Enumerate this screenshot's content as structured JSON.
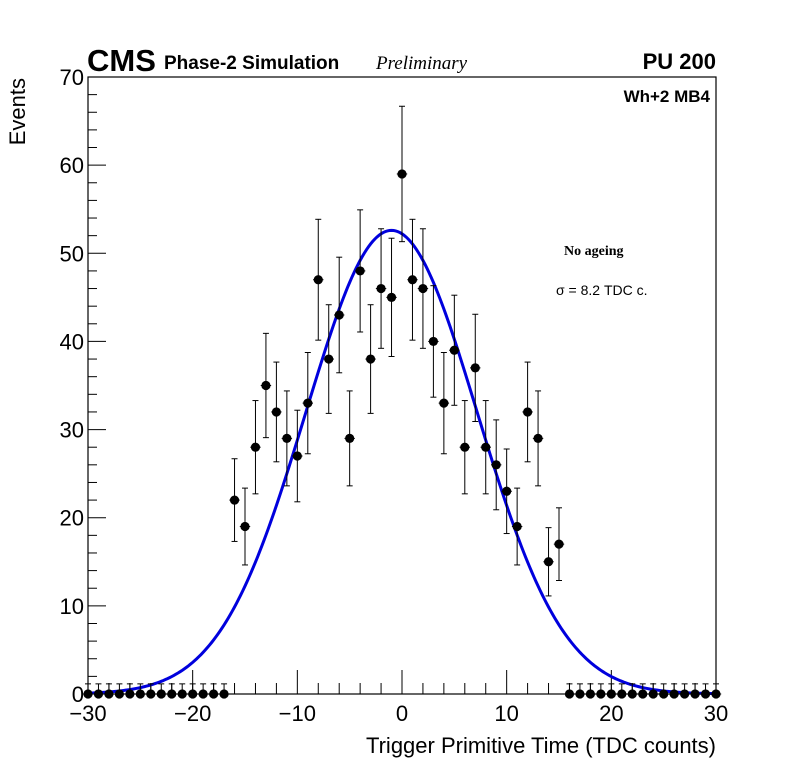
{
  "header": {
    "experiment": "CMS",
    "label": "Phase-2 Simulation",
    "status": "Preliminary",
    "pileup": "PU 200"
  },
  "chart_data": {
    "type": "scatter",
    "title": "",
    "xlabel": "Trigger Primitive Time (TDC counts)",
    "ylabel": "Events",
    "xlim": [
      -30,
      30
    ],
    "ylim": [
      0,
      70
    ],
    "x_ticks": [
      -30,
      -20,
      -10,
      0,
      10,
      20,
      30
    ],
    "x_tick_labels": [
      "−30",
      "−20",
      "−10",
      "0",
      "10",
      "20",
      "30"
    ],
    "y_ticks": [
      0,
      10,
      20,
      30,
      40,
      50,
      60,
      70
    ],
    "y_tick_labels": [
      "0",
      "10",
      "20",
      "30",
      "40",
      "50",
      "60",
      "70"
    ],
    "grid": false,
    "legend": null,
    "annotations": {
      "region": "Wh+2 MB4",
      "condition": "No ageing",
      "resolution": "σ = 8.2 TDC c."
    },
    "series": [
      {
        "name": "data",
        "style": "points-with-errors",
        "color": "#000000",
        "x": [
          -30,
          -29,
          -28,
          -27,
          -26,
          -25,
          -24,
          -23,
          -22,
          -21,
          -20,
          -19,
          -18,
          -17,
          -16,
          -15,
          -14,
          -13,
          -12,
          -11,
          -10,
          -9,
          -8,
          -7,
          -6,
          -5,
          -4,
          -3,
          -2,
          -1,
          0,
          1,
          2,
          3,
          4,
          5,
          6,
          7,
          8,
          9,
          10,
          11,
          12,
          13,
          14,
          15,
          16,
          17,
          18,
          19,
          20,
          21,
          22,
          23,
          24,
          25,
          26,
          27,
          28,
          29,
          30
        ],
        "y": [
          0,
          0,
          0,
          0,
          0,
          0,
          0,
          0,
          0,
          0,
          0,
          0,
          0,
          0,
          22,
          19,
          28,
          35,
          32,
          29,
          27,
          33,
          47,
          38,
          43,
          29,
          48,
          38,
          46,
          45,
          59,
          47,
          46,
          40,
          33,
          39,
          28,
          37,
          28,
          26,
          23,
          19,
          32,
          29,
          15,
          17,
          0,
          0,
          0,
          0,
          0,
          0,
          0,
          0,
          0,
          0,
          0,
          0,
          0,
          0,
          0
        ]
      },
      {
        "name": "gaussian-fit",
        "style": "line",
        "color": "#0000dd",
        "function": "gaussian",
        "amplitude": 52.6,
        "mean": -1.0,
        "sigma": 8.2
      }
    ]
  }
}
